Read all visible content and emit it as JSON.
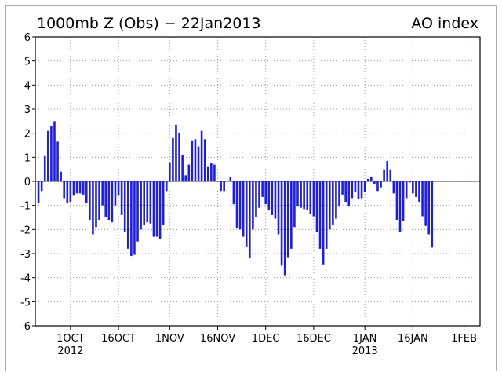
{
  "chart_data": {
    "type": "bar",
    "title": "1000mb Z (Obs) − 22Jan2013",
    "subtitle": "AO index",
    "color": "#1f1fd8",
    "grid": true,
    "x": [
      "2012-09-21",
      "2012-09-22",
      "2012-09-23",
      "2012-09-24",
      "2012-09-25",
      "2012-09-26",
      "2012-09-27",
      "2012-09-28",
      "2012-09-29",
      "2012-09-30",
      "2012-10-01",
      "2012-10-02",
      "2012-10-03",
      "2012-10-04",
      "2012-10-05",
      "2012-10-06",
      "2012-10-07",
      "2012-10-08",
      "2012-10-09",
      "2012-10-10",
      "2012-10-11",
      "2012-10-12",
      "2012-10-13",
      "2012-10-14",
      "2012-10-15",
      "2012-10-16",
      "2012-10-17",
      "2012-10-18",
      "2012-10-19",
      "2012-10-20",
      "2012-10-21",
      "2012-10-22",
      "2012-10-23",
      "2012-10-24",
      "2012-10-25",
      "2012-10-26",
      "2012-10-27",
      "2012-10-28",
      "2012-10-29",
      "2012-10-30",
      "2012-10-31",
      "2012-11-01",
      "2012-11-02",
      "2012-11-03",
      "2012-11-04",
      "2012-11-05",
      "2012-11-06",
      "2012-11-07",
      "2012-11-08",
      "2012-11-09",
      "2012-11-10",
      "2012-11-11",
      "2012-11-12",
      "2012-11-13",
      "2012-11-14",
      "2012-11-15",
      "2012-11-16",
      "2012-11-17",
      "2012-11-18",
      "2012-11-19",
      "2012-11-20",
      "2012-11-21",
      "2012-11-22",
      "2012-11-23",
      "2012-11-24",
      "2012-11-25",
      "2012-11-26",
      "2012-11-27",
      "2012-11-28",
      "2012-11-29",
      "2012-11-30",
      "2012-12-01",
      "2012-12-02",
      "2012-12-03",
      "2012-12-04",
      "2012-12-05",
      "2012-12-06",
      "2012-12-07",
      "2012-12-08",
      "2012-12-09",
      "2012-12-10",
      "2012-12-11",
      "2012-12-12",
      "2012-12-13",
      "2012-12-14",
      "2012-12-15",
      "2012-12-16",
      "2012-12-17",
      "2012-12-18",
      "2012-12-19",
      "2012-12-20",
      "2012-12-21",
      "2012-12-22",
      "2012-12-23",
      "2012-12-24",
      "2012-12-25",
      "2012-12-26",
      "2012-12-27",
      "2012-12-28",
      "2012-12-29",
      "2012-12-30",
      "2012-12-31",
      "2013-01-01",
      "2013-01-02",
      "2013-01-03",
      "2013-01-04",
      "2013-01-05",
      "2013-01-06",
      "2013-01-07",
      "2013-01-08",
      "2013-01-09",
      "2013-01-10",
      "2013-01-11",
      "2013-01-12",
      "2013-01-13",
      "2013-01-14",
      "2013-01-15",
      "2013-01-16",
      "2013-01-17",
      "2013-01-18",
      "2013-01-19",
      "2013-01-20",
      "2013-01-21",
      "2013-01-22"
    ],
    "values": [
      -0.9,
      -0.4,
      1.05,
      2.1,
      2.3,
      2.5,
      1.65,
      0.4,
      -0.7,
      -0.9,
      -0.85,
      -0.6,
      -0.5,
      -0.5,
      -0.55,
      -0.9,
      -1.6,
      -2.2,
      -1.9,
      -1.6,
      -1.0,
      -1.5,
      -1.6,
      -1.7,
      -1.0,
      -0.6,
      -1.4,
      -2.1,
      -2.8,
      -3.1,
      -3.05,
      -2.5,
      -2.0,
      -1.8,
      -1.7,
      -1.75,
      -2.3,
      -2.3,
      -2.4,
      -1.8,
      -0.4,
      0.8,
      1.8,
      2.35,
      2.0,
      1.1,
      0.25,
      0.7,
      1.7,
      1.75,
      1.45,
      2.1,
      1.75,
      0.6,
      0.75,
      0.7,
      0,
      -0.4,
      -0.4,
      0,
      0.2,
      -0.95,
      -1.95,
      -2.0,
      -2.3,
      -2.7,
      -3.2,
      -2.0,
      -1.5,
      -1.1,
      -0.65,
      -0.95,
      -1.2,
      -1.4,
      -1.55,
      -2.2,
      -3.5,
      -3.9,
      -3.15,
      -2.8,
      -1.9,
      -1.05,
      -1.1,
      -1.15,
      -1.2,
      -1.35,
      -1.45,
      -2.1,
      -2.8,
      -3.45,
      -2.8,
      -2.0,
      -1.8,
      -1.55,
      -1.05,
      -0.55,
      -0.85,
      -1.05,
      -0.7,
      -0.45,
      -0.75,
      -0.7,
      -0.45,
      0.1,
      0.2,
      -0.1,
      -0.4,
      -0.25,
      0.5,
      0.85,
      0.5,
      -0.5,
      -1.6,
      -2.1,
      -1.65,
      -0.7,
      -0.05,
      -0.5,
      -0.65,
      -0.85,
      -1.45,
      -1.85,
      -2.2,
      -2.75
    ],
    "xlim": [
      "2012-09-20",
      "2013-02-06"
    ],
    "xticks": [
      {
        "value": "2012-10-01",
        "label": "1OCT"
      },
      {
        "value": "2012-10-16",
        "label": "16OCT"
      },
      {
        "value": "2012-11-01",
        "label": "1NOV"
      },
      {
        "value": "2012-11-16",
        "label": "16NOV"
      },
      {
        "value": "2012-12-01",
        "label": "1DEC"
      },
      {
        "value": "2012-12-16",
        "label": "16DEC"
      },
      {
        "value": "2013-01-01",
        "label": "1JAN"
      },
      {
        "value": "2013-01-16",
        "label": "16JAN"
      },
      {
        "value": "2013-02-01",
        "label": "1FEB"
      }
    ],
    "xtick_years": [
      {
        "value": "2012-10-01",
        "label": "2012"
      },
      {
        "value": "2013-01-01",
        "label": "2013"
      }
    ],
    "ylim": [
      -6,
      6
    ],
    "yticks": [
      -6,
      -5,
      -4,
      -3,
      -2,
      -1,
      0,
      1,
      2,
      3,
      4,
      5,
      6
    ]
  }
}
